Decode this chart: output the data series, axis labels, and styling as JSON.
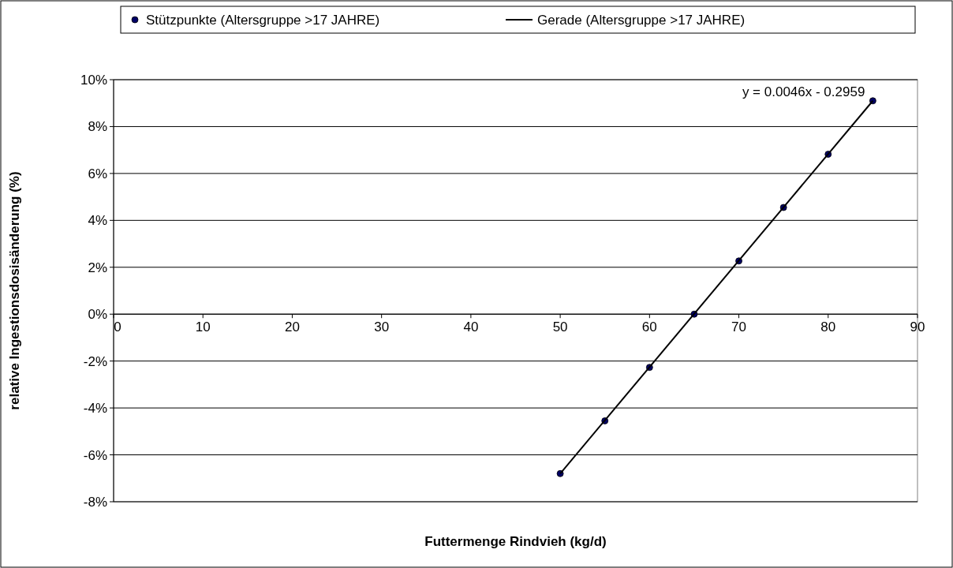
{
  "chart_data": {
    "type": "scatter",
    "xlabel": "Futtermenge Rindvieh (kg/d)",
    "ylabel": "relative Ingestionsdosisänderung (%)",
    "series": [
      {
        "type": "scatter",
        "name": "Stützpunkte (Altersgruppe >17 JAHRE)",
        "color": "#000066",
        "marker": "circle",
        "x": [
          50,
          55,
          60,
          65,
          70,
          75,
          80,
          85
        ],
        "values": [
          -6.8,
          -4.55,
          -2.27,
          0,
          2.27,
          4.55,
          6.82,
          9.1
        ]
      },
      {
        "type": "line",
        "name": "Gerade (Altersgruppe >17 JAHRE)",
        "color": "#000000",
        "marker": "none",
        "line_style": "solid",
        "x": [
          50,
          85
        ],
        "values": [
          -6.8,
          9.1
        ]
      }
    ],
    "xlim": [
      0,
      90
    ],
    "xticks": [
      0,
      10,
      20,
      30,
      40,
      50,
      60,
      70,
      80,
      90
    ],
    "ylim": [
      -8,
      10
    ],
    "yticks": [
      {
        "value": -8,
        "label": "-8%"
      },
      {
        "value": -6,
        "label": "-6%"
      },
      {
        "value": -4,
        "label": "-4%"
      },
      {
        "value": -2,
        "label": "-2%"
      },
      {
        "value": 0,
        "label": "0%"
      },
      {
        "value": 2,
        "label": "2%"
      },
      {
        "value": 4,
        "label": "4%"
      },
      {
        "value": 6,
        "label": "6%"
      },
      {
        "value": 8,
        "label": "8%"
      },
      {
        "value": 10,
        "label": "10%"
      }
    ],
    "grid": "y",
    "legend": "top",
    "annotations": [
      {
        "text": "y = 0.0046x - 0.2959",
        "x": 85,
        "y": 9.1
      }
    ]
  }
}
